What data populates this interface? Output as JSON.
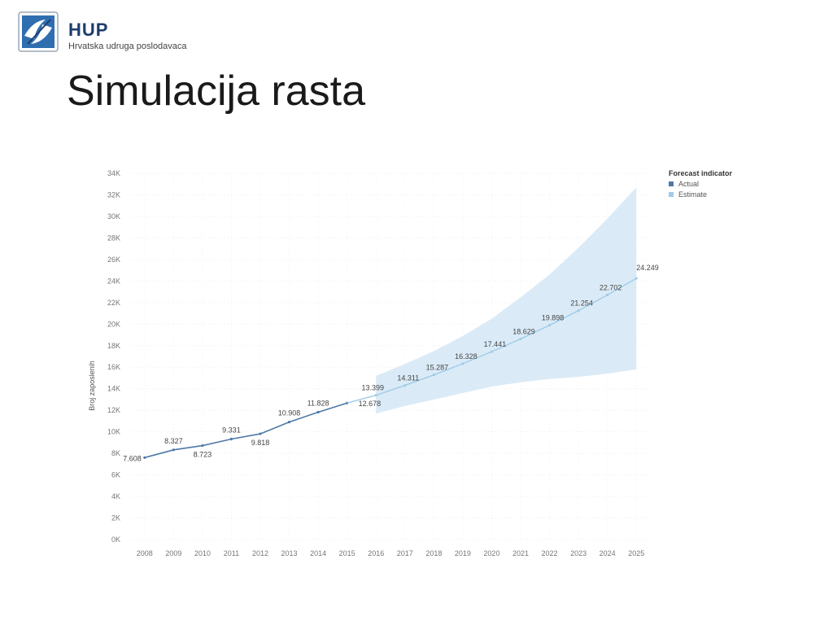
{
  "header": {
    "logo_name": "HUP",
    "logo_subtitle": "Hrvatska udruga poslodavaca",
    "title": "Simulacija rasta"
  },
  "chart_data": {
    "type": "line",
    "title": "",
    "xlabel": "",
    "ylabel": "Broj zaposlenih",
    "ylim": [
      0,
      34000
    ],
    "yticks": [
      "0K",
      "2K",
      "4K",
      "6K",
      "8K",
      "10K",
      "12K",
      "14K",
      "16K",
      "18K",
      "20K",
      "22K",
      "24K",
      "26K",
      "28K",
      "30K",
      "32K",
      "34K"
    ],
    "x": [
      2008,
      2009,
      2010,
      2011,
      2012,
      2013,
      2014,
      2015,
      2016,
      2017,
      2018,
      2019,
      2020,
      2021,
      2022,
      2023,
      2024,
      2025
    ],
    "grid": true,
    "legend_placement": "top-right",
    "legend_title": "Forecast indicator",
    "series": [
      {
        "name": "Actual",
        "color": "#4e79a7",
        "x": [
          2008,
          2009,
          2010,
          2011,
          2012,
          2013,
          2014,
          2015
        ],
        "values": [
          7608,
          8327,
          8723,
          9331,
          9818,
          10908,
          11828,
          12678
        ],
        "labels": [
          "7.608",
          "8.327",
          "8.723",
          "9.331",
          "9.818",
          "10.908",
          "11.828",
          "12.678"
        ]
      },
      {
        "name": "Estimate",
        "color": "#a0cbe8",
        "x": [
          2015,
          2016,
          2017,
          2018,
          2019,
          2020,
          2021,
          2022,
          2023,
          2024,
          2025
        ],
        "values": [
          12678,
          13399,
          14311,
          15287,
          16328,
          17441,
          18629,
          19898,
          21254,
          22702,
          24249
        ],
        "labels": [
          "",
          "13.399",
          "14.311",
          "15.287",
          "16.328",
          "17.441",
          "18.629",
          "19.898",
          "21.254",
          "22.702",
          "24.249"
        ],
        "band_upper": [
          null,
          15200,
          16300,
          17500,
          18900,
          20500,
          22500,
          24600,
          27100,
          29800,
          32700
        ],
        "band_lower": [
          null,
          11700,
          12400,
          13000,
          13600,
          14200,
          14600,
          14900,
          15100,
          15400,
          15800
        ],
        "band_color": "#d4e8f6"
      }
    ]
  }
}
